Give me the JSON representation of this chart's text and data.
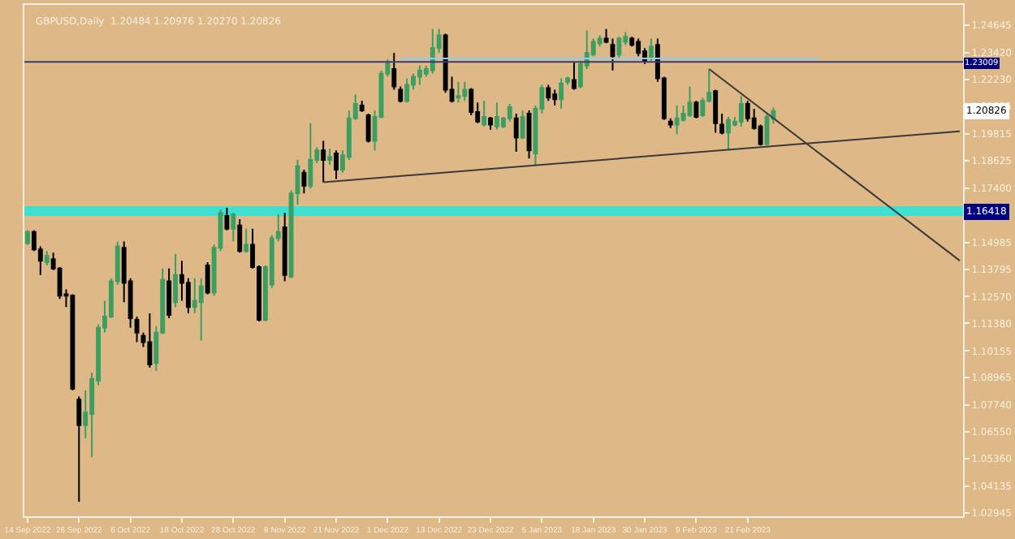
{
  "chart_data": {
    "type": "candlestick",
    "title": "GBPUSD,Daily  1.20484 1.20976 1.20270 1.20826",
    "categories": [
      "14 Sep 2022",
      null,
      null,
      null,
      null,
      null,
      null,
      null,
      "26 Sep 2022",
      null,
      null,
      null,
      null,
      null,
      null,
      null,
      "6 Oct 2022",
      null,
      null,
      null,
      null,
      null,
      null,
      null,
      "18 Oct 2022",
      null,
      null,
      null,
      null,
      null,
      null,
      null,
      "28 Oct 2022",
      null,
      null,
      null,
      null,
      null,
      null,
      null,
      "9 Nov 2022",
      null,
      null,
      null,
      null,
      null,
      null,
      null,
      "21 Nov 2022",
      null,
      null,
      null,
      null,
      null,
      null,
      null,
      "1 Dec 2022",
      null,
      null,
      null,
      null,
      null,
      null,
      null,
      "13 Dec 2022",
      null,
      null,
      null,
      null,
      null,
      null,
      null,
      "23 Dec 2022",
      null,
      null,
      null,
      null,
      null,
      null,
      null,
      "5 Jan 2023",
      null,
      null,
      null,
      null,
      null,
      null,
      null,
      "18 Jan 2023",
      null,
      null,
      null,
      null,
      null,
      null,
      null,
      "30 Jan 2023",
      null,
      null,
      null,
      null,
      null,
      null,
      null,
      "9 Feb 2023",
      null,
      null,
      null,
      null,
      null,
      null,
      null,
      "21 Feb 2023",
      null,
      null,
      null,
      null,
      null,
      null,
      null,
      null,
      null,
      null,
      null,
      null,
      null,
      null,
      null,
      null,
      null,
      null,
      null,
      null,
      null,
      null,
      null,
      null,
      null,
      null,
      null,
      null,
      null,
      null,
      null,
      null,
      null
    ],
    "ohlc": [
      [
        1.1495,
        1.1552,
        1.1488,
        1.1545
      ],
      [
        1.1545,
        1.1552,
        1.146,
        1.1467
      ],
      [
        1.1467,
        1.1481,
        1.1353,
        1.1417
      ],
      [
        1.141,
        1.146,
        1.1396,
        1.1438
      ],
      [
        1.1424,
        1.1453,
        1.1375,
        1.1382
      ],
      [
        1.1382,
        1.1389,
        1.1247,
        1.1261
      ],
      [
        1.1268,
        1.1289,
        1.1211,
        1.1261
      ],
      [
        1.1261,
        1.1268,
        1.0841,
        1.0848
      ],
      [
        1.0799,
        1.0813,
        1.0344,
        1.0685
      ],
      [
        1.0685,
        1.0841,
        1.0628,
        1.0742
      ],
      [
        1.0735,
        1.0919,
        1.0543,
        1.0891
      ],
      [
        1.0884,
        1.1133,
        1.0863,
        1.1119
      ],
      [
        1.1119,
        1.1239,
        1.1097,
        1.1168
      ],
      [
        1.1168,
        1.1339,
        1.1161,
        1.1325
      ],
      [
        1.1325,
        1.1502,
        1.1311,
        1.1481
      ],
      [
        1.1474,
        1.1502,
        1.1232,
        1.1318
      ],
      [
        1.1325,
        1.1339,
        1.1119,
        1.1161
      ],
      [
        1.1154,
        1.1168,
        1.1055,
        1.1097
      ],
      [
        1.1083,
        1.1097,
        1.1033,
        1.1055
      ],
      [
        1.1055,
        1.1183,
        1.0941,
        1.0955
      ],
      [
        1.0962,
        1.1126,
        1.0927,
        1.1097
      ],
      [
        1.1097,
        1.1382,
        1.109,
        1.1332
      ],
      [
        1.1325,
        1.1382,
        1.1161,
        1.1176
      ],
      [
        1.1232,
        1.1446,
        1.1211,
        1.1353
      ],
      [
        1.1353,
        1.1417,
        1.1239,
        1.1318
      ],
      [
        1.1318,
        1.1339,
        1.1183,
        1.1211
      ],
      [
        1.1211,
        1.1339,
        1.1183,
        1.1239
      ],
      [
        1.1232,
        1.1339,
        1.1062,
        1.1303
      ],
      [
        1.1396,
        1.141,
        1.1268,
        1.1275
      ],
      [
        1.1275,
        1.1488,
        1.1261,
        1.1474
      ],
      [
        1.1474,
        1.1645,
        1.146,
        1.163
      ],
      [
        1.1616,
        1.1652,
        1.1552,
        1.1559
      ],
      [
        1.1559,
        1.163,
        1.1502,
        1.1623
      ],
      [
        1.1574,
        1.1602,
        1.1453,
        1.146
      ],
      [
        1.146,
        1.1559,
        1.1453,
        1.1488
      ],
      [
        1.1488,
        1.1559,
        1.1382,
        1.1389
      ],
      [
        1.1389,
        1.1396,
        1.1147,
        1.1154
      ],
      [
        1.1154,
        1.1396,
        1.1147,
        1.1389
      ],
      [
        1.1311,
        1.1531,
        1.1296,
        1.1517
      ],
      [
        1.1517,
        1.1623,
        1.1502,
        1.1545
      ],
      [
        1.1566,
        1.163,
        1.1325,
        1.1353
      ],
      [
        1.1346,
        1.173,
        1.1339,
        1.1716
      ],
      [
        1.1716,
        1.1865,
        1.1666,
        1.1837
      ],
      [
        1.1808,
        1.1822,
        1.1716,
        1.1751
      ],
      [
        1.1751,
        1.2029,
        1.1737,
        1.1865
      ],
      [
        1.1865,
        1.1922,
        1.1851,
        1.1908
      ],
      [
        1.1908,
        1.195,
        1.1766,
        1.1865
      ],
      [
        1.1865,
        1.1915,
        1.1844,
        1.1879
      ],
      [
        1.1894,
        1.1908,
        1.178,
        1.1822
      ],
      [
        1.1822,
        1.1908,
        1.1808,
        1.1886
      ],
      [
        1.1879,
        1.2086,
        1.1865,
        1.205
      ],
      [
        1.205,
        1.2157,
        1.2043,
        1.2114
      ],
      [
        1.2107,
        1.2128,
        1.2078,
        1.2086
      ],
      [
        1.2064,
        1.2071,
        1.1943,
        1.195
      ],
      [
        1.195,
        1.2086,
        1.1908,
        1.2057
      ],
      [
        1.2057,
        1.2263,
        1.205,
        1.2249
      ],
      [
        1.2249,
        1.2313,
        1.2235,
        1.2299
      ],
      [
        1.227,
        1.2341,
        1.2178,
        1.2192
      ],
      [
        1.2178,
        1.2192,
        1.2121,
        1.2128
      ],
      [
        1.2128,
        1.2228,
        1.2121,
        1.2199
      ],
      [
        1.2199,
        1.2249,
        1.2178,
        1.2235
      ],
      [
        1.2235,
        1.2285,
        1.2199,
        1.2263
      ],
      [
        1.2249,
        1.2285,
        1.2235,
        1.227
      ],
      [
        1.2263,
        1.2448,
        1.2249,
        1.2363
      ],
      [
        1.2363,
        1.2448,
        1.2341,
        1.242
      ],
      [
        1.242,
        1.2427,
        1.2164,
        1.2178
      ],
      [
        1.2178,
        1.2235,
        1.2121,
        1.2128
      ],
      [
        1.2142,
        1.2213,
        1.2121,
        1.215
      ],
      [
        1.215,
        1.2213,
        1.2128,
        1.2178
      ],
      [
        1.2178,
        1.2185,
        1.2064,
        1.2078
      ],
      [
        1.2078,
        1.2121,
        1.2029,
        1.2036
      ],
      [
        1.2022,
        1.2128,
        1.2014,
        1.2057
      ],
      [
        1.205,
        1.2057,
        1.2,
        1.2022
      ],
      [
        1.2014,
        1.2121,
        1.2,
        1.2057
      ],
      [
        1.2014,
        1.2057,
        1.2007,
        1.205
      ],
      [
        1.205,
        1.2114,
        1.2036,
        1.21
      ],
      [
        1.205,
        1.2071,
        1.1901,
        1.1965
      ],
      [
        1.1965,
        1.2086,
        1.1958,
        1.2057
      ],
      [
        1.2071,
        1.2086,
        1.1872,
        1.1908
      ],
      [
        1.1894,
        1.2107,
        1.1844,
        1.2093
      ],
      [
        1.2093,
        1.2199,
        1.2071,
        1.2185
      ],
      [
        1.2185,
        1.2199,
        1.2128,
        1.2142
      ],
      [
        1.2157,
        1.2178,
        1.2107,
        1.2135
      ],
      [
        1.2135,
        1.2228,
        1.2093,
        1.2206
      ],
      [
        1.2213,
        1.2235,
        1.2199,
        1.2228
      ],
      [
        1.2221,
        1.2299,
        1.2178,
        1.2185
      ],
      [
        1.2192,
        1.2306,
        1.2185,
        1.2292
      ],
      [
        1.2285,
        1.2441,
        1.227,
        1.2341
      ],
      [
        1.2334,
        1.2405,
        1.2327,
        1.2391
      ],
      [
        1.2384,
        1.242,
        1.237,
        1.2405
      ],
      [
        1.2405,
        1.2448,
        1.2384,
        1.2391
      ],
      [
        1.2377,
        1.2405,
        1.2263,
        1.2327
      ],
      [
        1.2334,
        1.2413,
        1.232,
        1.2405
      ],
      [
        1.2391,
        1.2434,
        1.2377,
        1.2413
      ],
      [
        1.2405,
        1.2413,
        1.237,
        1.2377
      ],
      [
        1.2391,
        1.2405,
        1.2327,
        1.2341
      ],
      [
        1.2349,
        1.2363,
        1.2292,
        1.2306
      ],
      [
        1.232,
        1.2405,
        1.2306,
        1.237
      ],
      [
        1.2377,
        1.2405,
        1.2213,
        1.2228
      ],
      [
        1.2228,
        1.2235,
        1.2043,
        1.205
      ],
      [
        1.2036,
        1.205,
        1.2007,
        1.2022
      ],
      [
        1.2022,
        1.2107,
        1.1979,
        1.205
      ],
      [
        1.2043,
        1.2107,
        1.2036,
        1.2071
      ],
      [
        1.2064,
        1.2192,
        1.2057,
        1.2121
      ],
      [
        1.2121,
        1.2128,
        1.205,
        1.2057
      ],
      [
        1.2064,
        1.2142,
        1.2057,
        1.2128
      ],
      [
        1.2128,
        1.227,
        1.2121,
        1.2164
      ],
      [
        1.2171,
        1.2178,
        1.1986,
        1.2029
      ],
      [
        1.2022,
        1.2071,
        1.1979,
        1.1986
      ],
      [
        1.1986,
        1.2057,
        1.1908,
        1.2043
      ],
      [
        1.2022,
        1.2057,
        1.2014,
        1.2036
      ],
      [
        1.2036,
        1.215,
        1.2014,
        1.2114
      ],
      [
        1.2114,
        1.2128,
        1.2036,
        1.205
      ],
      [
        1.205,
        1.2093,
        1.2,
        1.2007
      ],
      [
        1.2014,
        1.2022,
        1.1929,
        1.1936
      ],
      [
        1.1936,
        1.2071,
        1.1929,
        1.2057
      ],
      [
        1.2048,
        1.2098,
        1.2027,
        1.2083
      ],
      null,
      null,
      null,
      null,
      null,
      null,
      null,
      null,
      null,
      null,
      null,
      null,
      null,
      null,
      null,
      null,
      null,
      null,
      null,
      null,
      null,
      null,
      null,
      null,
      null,
      null,
      null,
      null,
      null
    ],
    "colors": [
      "#3c9f61",
      "#000000",
      "#000000",
      "#3c9f61",
      "#000000",
      "#000000",
      "#000000",
      "#000000",
      "#000000",
      "#3c9f61",
      "#3c9f61",
      "#3c9f61",
      "#3c9f61",
      "#3c9f61",
      "#3c9f61",
      "#000000",
      "#000000",
      "#000000",
      "#000000",
      "#000000",
      "#3c9f61",
      "#3c9f61",
      "#000000",
      "#3c9f61",
      "#000000",
      "#000000",
      "#3c9f61",
      "#3c9f61",
      "#000000",
      "#3c9f61",
      "#3c9f61",
      "#000000",
      "#3c9f61",
      "#000000",
      "#3c9f61",
      "#000000",
      "#000000",
      "#3c9f61",
      "#3c9f61",
      "#3c9f61",
      "#000000",
      "#3c9f61",
      "#3c9f61",
      "#000000",
      "#3c9f61",
      "#3c9f61",
      "#000000",
      "#3c9f61",
      "#000000",
      "#3c9f61",
      "#3c9f61",
      "#3c9f61",
      "#000000",
      "#000000",
      "#3c9f61",
      "#3c9f61",
      "#3c9f61",
      "#000000",
      "#000000",
      "#3c9f61",
      "#3c9f61",
      "#3c9f61",
      "#3c9f61",
      "#3c9f61",
      "#3c9f61",
      "#000000",
      "#000000",
      "#3c9f61",
      "#3c9f61",
      "#000000",
      "#000000",
      "#3c9f61",
      "#000000",
      "#3c9f61",
      "#3c9f61",
      "#3c9f61",
      "#000000",
      "#3c9f61",
      "#000000",
      "#3c9f61",
      "#3c9f61",
      "#000000",
      "#000000",
      "#3c9f61",
      "#3c9f61",
      "#000000",
      "#3c9f61",
      "#3c9f61",
      "#3c9f61",
      "#3c9f61",
      "#000000",
      "#000000",
      "#3c9f61",
      "#3c9f61",
      "#000000",
      "#000000",
      "#000000",
      "#3c9f61",
      "#000000",
      "#000000",
      "#000000",
      "#3c9f61",
      "#3c9f61",
      "#3c9f61",
      "#000000",
      "#3c9f61",
      "#3c9f61",
      "#000000",
      "#000000",
      "#3c9f61",
      "#3c9f61",
      "#3c9f61",
      "#000000",
      "#000000",
      "#000000",
      "#3c9f61",
      "#3c9f61",
      null,
      null,
      null,
      null,
      null,
      null,
      null,
      null,
      null,
      null,
      null,
      null,
      null,
      null,
      null,
      null,
      null,
      null,
      null,
      null,
      null,
      null,
      null,
      null,
      null,
      null,
      null,
      null,
      null
    ],
    "series": [
      {
        "type": "line",
        "color": "#87cefa",
        "values": [
          null,
          null,
          null,
          null,
          null,
          null,
          null,
          null,
          null,
          null,
          null,
          null,
          null,
          null,
          null,
          null,
          null,
          null,
          null,
          null,
          null,
          null,
          null,
          null,
          null,
          null,
          null,
          null,
          null,
          null,
          null,
          null,
          null,
          null,
          null,
          null,
          null,
          null,
          null,
          null,
          null,
          null,
          null,
          null,
          null,
          null,
          null,
          null,
          null,
          null,
          null,
          null,
          null,
          null,
          null,
          null,
          null,
          null,
          1.2317,
          null,
          null,
          null,
          null,
          null,
          null,
          null,
          null,
          null,
          null,
          null,
          null,
          null,
          null,
          null,
          null,
          null,
          null,
          null,
          null,
          null,
          null,
          null,
          null,
          null,
          null,
          null,
          null,
          null,
          null,
          null,
          null,
          null,
          null,
          null,
          null,
          null,
          null,
          null,
          null,
          null,
          null,
          null,
          null,
          null,
          null,
          null,
          null,
          null,
          null,
          null,
          null,
          null,
          null,
          null,
          null,
          null,
          null,
          null,
          null,
          null,
          null,
          null,
          null,
          1.2317,
          null,
          null,
          null,
          null,
          null,
          null,
          null,
          null,
          null,
          null,
          null,
          null,
          null,
          null,
          null,
          null,
          null,
          null,
          null,
          null,
          null,
          null
        ]
      },
      {
        "type": "line",
        "color": "#3a3a3a",
        "values": [
          null,
          null,
          null,
          null,
          null,
          null,
          null,
          null,
          null,
          null,
          null,
          null,
          null,
          null,
          null,
          null,
          null,
          null,
          null,
          null,
          null,
          null,
          null,
          null,
          null,
          null,
          null,
          null,
          null,
          null,
          null,
          null,
          null,
          null,
          null,
          null,
          null,
          null,
          null,
          null,
          null,
          null,
          null,
          null,
          null,
          null,
          1.1766,
          null,
          null,
          null,
          null,
          null,
          null,
          null,
          null,
          null,
          null,
          null,
          null,
          null,
          null,
          null,
          null,
          null,
          null,
          null,
          null,
          null,
          null,
          null,
          null,
          null,
          null,
          null,
          null,
          null,
          null,
          null,
          null,
          null,
          null,
          null,
          null,
          null,
          null,
          null,
          null,
          null,
          null,
          null,
          null,
          null,
          null,
          null,
          null,
          null,
          null,
          null,
          null,
          null,
          null,
          null,
          null,
          null,
          null,
          null,
          null,
          null,
          null,
          null,
          null,
          null,
          null,
          null,
          null,
          null,
          null,
          null,
          null,
          null,
          null,
          null,
          null,
          null,
          null,
          null,
          null,
          null,
          null,
          null,
          null,
          null,
          null,
          null,
          null,
          null,
          null,
          null,
          null,
          null,
          null,
          null,
          null,
          null,
          null,
          1.1993
        ]
      },
      {
        "type": "line",
        "color": "#3a3a3a",
        "values": [
          null,
          null,
          null,
          null,
          null,
          null,
          null,
          null,
          null,
          null,
          null,
          null,
          null,
          null,
          null,
          null,
          null,
          null,
          null,
          null,
          null,
          null,
          null,
          null,
          null,
          null,
          null,
          null,
          null,
          null,
          null,
          null,
          null,
          null,
          null,
          null,
          null,
          null,
          null,
          null,
          null,
          null,
          null,
          null,
          null,
          null,
          null,
          null,
          null,
          null,
          null,
          null,
          null,
          null,
          null,
          null,
          null,
          null,
          null,
          null,
          null,
          null,
          null,
          null,
          null,
          null,
          null,
          null,
          null,
          null,
          null,
          null,
          null,
          null,
          null,
          null,
          null,
          null,
          null,
          null,
          null,
          null,
          null,
          null,
          null,
          null,
          null,
          null,
          null,
          null,
          null,
          null,
          null,
          null,
          null,
          null,
          null,
          null,
          null,
          null,
          null,
          null,
          null,
          null,
          null,
          null,
          1.227,
          null,
          null,
          null,
          null,
          null,
          null,
          null,
          null,
          null,
          null,
          null,
          null,
          null,
          null,
          null,
          null,
          null,
          null,
          null,
          null,
          null,
          null,
          null,
          null,
          null,
          null,
          null,
          null,
          null,
          null,
          null,
          null,
          null,
          null,
          null,
          null,
          null,
          null,
          1.1417
        ]
      }
    ],
    "ylim": [
      1.028,
      1.2555
    ],
    "yticks": [
      1.24645,
      {
        "value": 1.2342,
        "label": "1.23420"
      },
      {
        "value": 1.2223,
        "label": "1.22230"
      },
      1.21035,
      1.19815,
      1.18625,
      {
        "value": 1.174,
        "label": "1.17400"
      },
      1.14985,
      1.13795,
      {
        "value": 1.1257,
        "label": "1.12570"
      },
      {
        "value": 1.1138,
        "label": "1.11380"
      },
      1.10155,
      1.08965,
      {
        "value": 1.0774,
        "label": "1.07740"
      },
      {
        "value": 1.0655,
        "label": "1.06550"
      },
      {
        "value": 1.0536,
        "label": "1.05360"
      },
      1.04135,
      1.02945
    ],
    "ref_lines": [
      {
        "axis": "y",
        "value": 1.23009,
        "label": "1.23009",
        "color": "#3c3c6e"
      }
    ],
    "bands": [
      {
        "axis": "y",
        "from": 1.1616,
        "to": 1.1659,
        "label": "1.16418",
        "color": "#40e0d0"
      }
    ],
    "annotations": [
      {
        "text": "1.20826",
        "y": 1.20826
      }
    ]
  }
}
